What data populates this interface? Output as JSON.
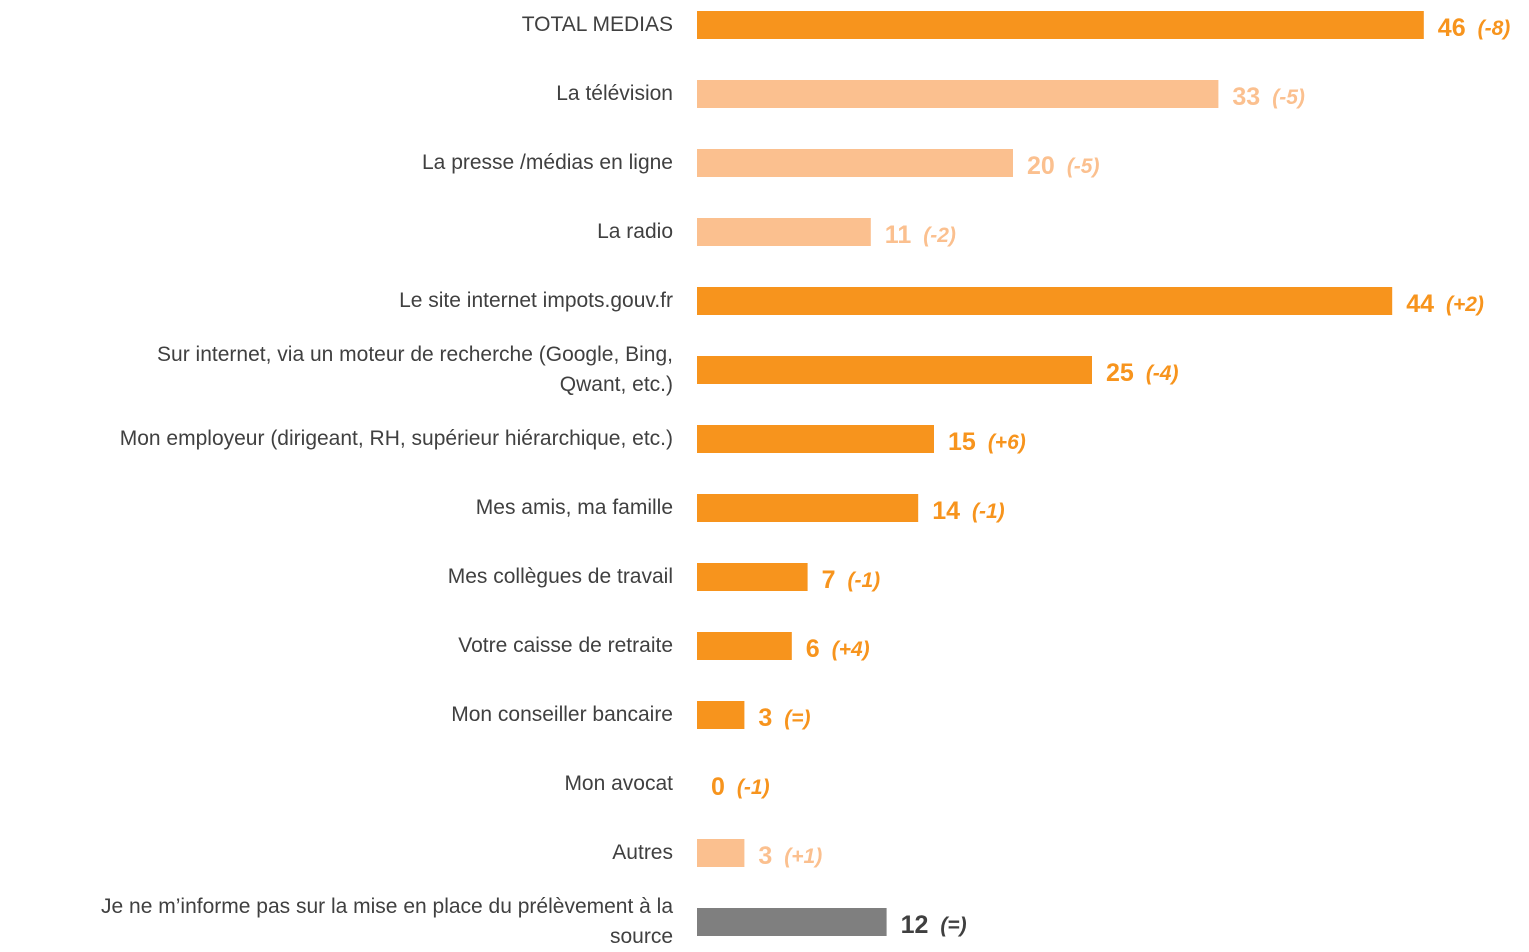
{
  "chart_data": {
    "type": "barh",
    "categories": [
      "TOTAL MEDIAS",
      "La télévision",
      "La presse /médias en ligne",
      "La radio",
      "Le site internet impots.gouv.fr",
      "Sur internet, via un moteur de recherche (Google, Bing,\nQwant, etc.)",
      "Mon employeur (dirigeant, RH, supérieur hiérarchique, etc.)",
      "Mes amis, ma famille",
      "Mes collègues de travail",
      "Votre caisse de retraite",
      "Mon conseiller bancaire",
      "Mon avocat",
      "Autres",
      "Je ne m’informe pas sur la mise en place du prélèvement à la\nsource"
    ],
    "values": [
      46,
      33,
      20,
      11,
      44,
      25,
      15,
      14,
      7,
      6,
      3,
      0,
      3,
      12
    ],
    "changes": [
      "(-8)",
      "(-5)",
      "(-5)",
      "(-2)",
      "(+2)",
      "(-4)",
      "(+6)",
      "(-1)",
      "(-1)",
      "(+4)",
      "(=)",
      "(-1)",
      "(+1)",
      "(=)"
    ],
    "colors": [
      "#F7941D",
      "#FBC08F",
      "#FBC08F",
      "#FBC08F",
      "#F7941D",
      "#F7941D",
      "#F7941D",
      "#F7941D",
      "#F7941D",
      "#F7941D",
      "#F7941D",
      "#F7941D",
      "#FBC08F",
      "#7F7F7F"
    ],
    "text_colors": [
      "#F7941D",
      "#FBC08F",
      "#FBC08F",
      "#FBC08F",
      "#F7941D",
      "#F7941D",
      "#F7941D",
      "#F7941D",
      "#F7941D",
      "#F7941D",
      "#F7941D",
      "#F7941D",
      "#FBC08F",
      "#404040"
    ],
    "xlim": [
      0,
      50
    ]
  }
}
